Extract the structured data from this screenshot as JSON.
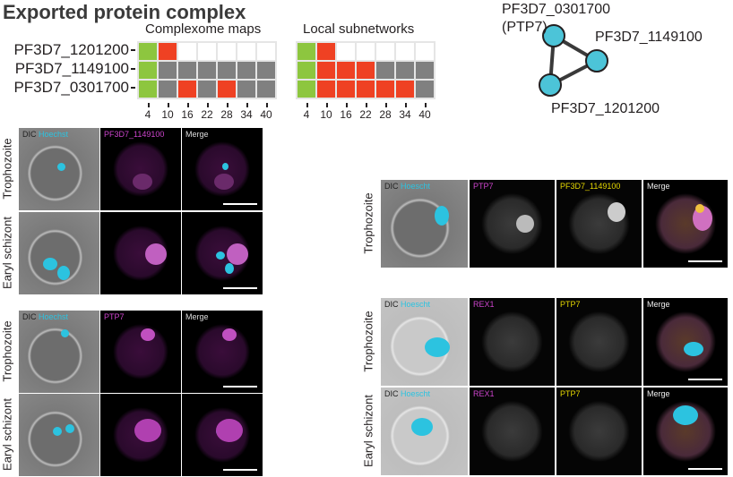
{
  "title": "Exported protein complex",
  "heatmaps": {
    "rows": [
      "PF3D7_1201200",
      "PF3D7_1149100",
      "PF3D7_0301700"
    ],
    "columns": [
      "4",
      "10",
      "16",
      "22",
      "28",
      "34",
      "40"
    ],
    "colors": {
      "green": "#8dc63f",
      "red": "#ef4123",
      "gray": "#808080",
      "white": "#ffffff"
    },
    "complexome": {
      "title": "Complexome maps",
      "cells": [
        [
          "green",
          "red",
          "white",
          "white",
          "white",
          "white",
          "white"
        ],
        [
          "green",
          "gray",
          "gray",
          "gray",
          "gray",
          "gray",
          "gray"
        ],
        [
          "green",
          "gray",
          "red",
          "gray",
          "red",
          "gray",
          "gray"
        ]
      ]
    },
    "subnetworks": {
      "title": "Local subnetworks",
      "cells": [
        [
          "green",
          "red",
          "white",
          "white",
          "white",
          "white",
          "white"
        ],
        [
          "green",
          "red",
          "red",
          "red",
          "gray",
          "gray",
          "gray"
        ],
        [
          "green",
          "red",
          "red",
          "red",
          "red",
          "red",
          "gray"
        ]
      ]
    }
  },
  "network": {
    "node_color": "#4cc4d8",
    "nodes": [
      {
        "label": "PF3D7_0301700",
        "sublabel": "(PTP7)"
      },
      {
        "label": "PF3D7_1149100"
      },
      {
        "label": "PF3D7_1201200"
      }
    ]
  },
  "panels": {
    "dic": "DIC",
    "hoechst": "Hoechst",
    "hoescht": "Hoescht",
    "merge": "Merge",
    "ptp7": "PTP7",
    "p1149100": "PF3D7_1149100",
    "rex1": "REX1",
    "trophozoite": "Trophozoite",
    "schizont": "Earyl schizont"
  }
}
